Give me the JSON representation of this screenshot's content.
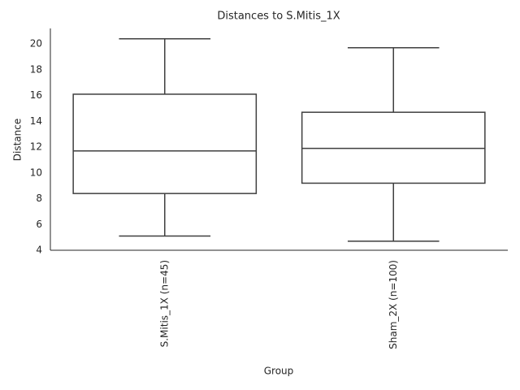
{
  "chart_data": {
    "type": "box",
    "title": "Distances to S.Mitis_1X",
    "x_label": "Group",
    "y_label": "Distance",
    "categories": [
      "S.Mitis_1X (n=45)",
      "Sham_2X (n=100)"
    ],
    "boxes": [
      {
        "whislo": 5.1,
        "q1": 8.4,
        "med": 11.7,
        "q3": 16.1,
        "whishi": 20.4
      },
      {
        "whislo": 4.7,
        "q1": 9.2,
        "med": 11.9,
        "q3": 14.7,
        "whishi": 19.7
      }
    ],
    "color": "#ffffff",
    "edge_color": "#3f3f3f",
    "ylim": [
      4,
      21.2
    ],
    "yticks": [
      4,
      6,
      8,
      10,
      12,
      14,
      16,
      18,
      20
    ],
    "grid": false
  }
}
